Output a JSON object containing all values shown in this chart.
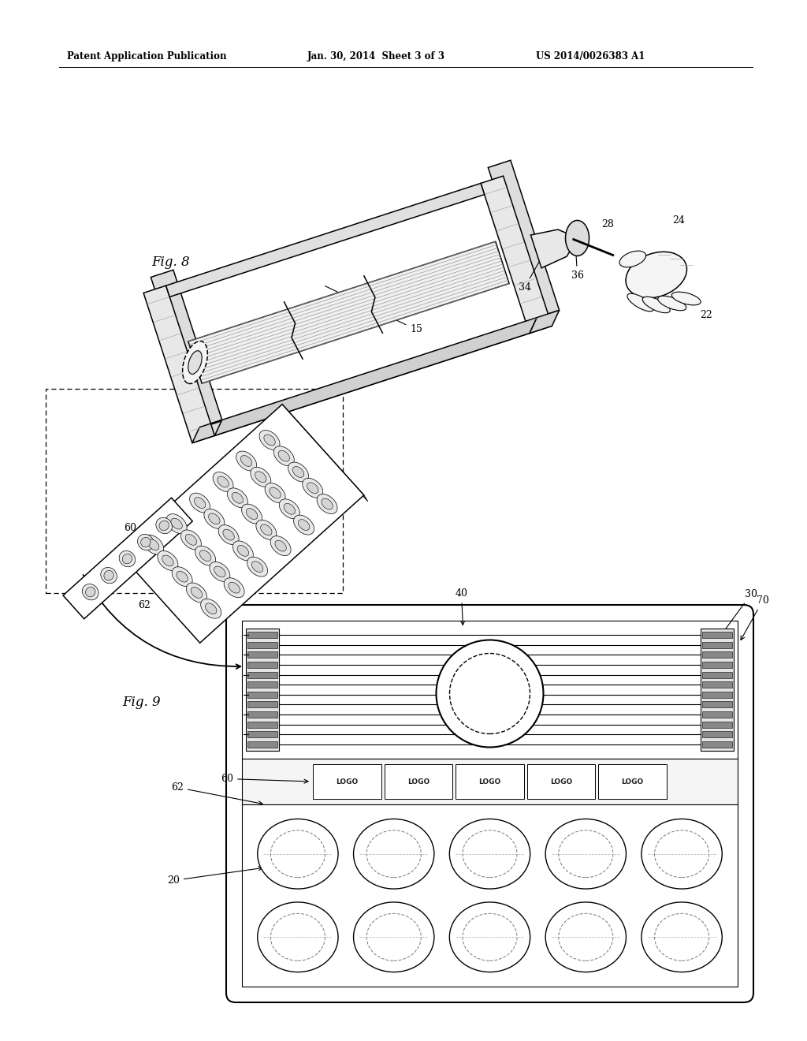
{
  "header_left": "Patent Application Publication",
  "header_mid": "Jan. 30, 2014  Sheet 3 of 3",
  "header_right": "US 2014/0026383 A1",
  "fig8_label": "Fig. 8",
  "fig9_label": "Fig. 9",
  "bg_color": "#ffffff",
  "lc": "#000000",
  "gray1": "#cccccc",
  "gray2": "#888888",
  "gray3": "#444444"
}
